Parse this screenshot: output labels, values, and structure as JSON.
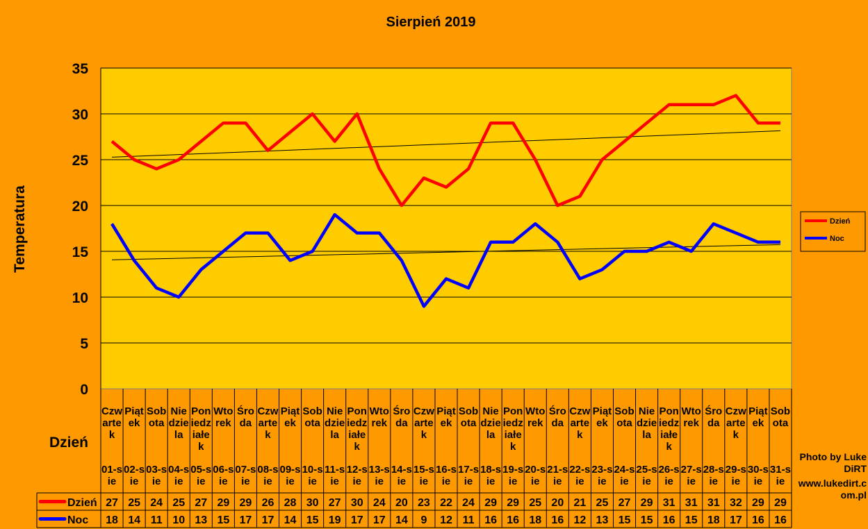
{
  "chart_data": {
    "type": "line",
    "title": "Sierpień 2019",
    "xlabel": "Dzień",
    "ylabel": "Temperatura",
    "ylim": [
      0,
      35
    ],
    "yticks": [
      0,
      5,
      10,
      15,
      20,
      25,
      30,
      35
    ],
    "grid": true,
    "legend_position": "right",
    "weekdays": [
      "Czwartek",
      "Piątek",
      "Sobota",
      "Niedziela",
      "Poniedziałek",
      "Wtorek",
      "Środa",
      "Czwartek",
      "Piątek",
      "Sobota",
      "Niedziela",
      "Poniedziałek",
      "Wtorek",
      "Środa",
      "Czwartek",
      "Piątek",
      "Sobota",
      "Niedziela",
      "Poniedziałek",
      "Wtorek",
      "Środa",
      "Czwartek",
      "Piątek",
      "Sobota",
      "Niedziela",
      "Poniedziałek",
      "Wtorek",
      "Środa",
      "Czwartek",
      "Piątek",
      "Sobota"
    ],
    "categories": [
      "01-sie",
      "02-sie",
      "03-sie",
      "04-sie",
      "05-sie",
      "06-sie",
      "07-sie",
      "08-sie",
      "09-sie",
      "10-sie",
      "11-sie",
      "12-sie",
      "13-sie",
      "14-sie",
      "15-sie",
      "16-sie",
      "17-sie",
      "18-sie",
      "19-sie",
      "20-sie",
      "21-sie",
      "22-sie",
      "23-sie",
      "24-sie",
      "25-sie",
      "26-sie",
      "27-sie",
      "28-sie",
      "29-sie",
      "30-sie",
      "31-sie"
    ],
    "series": [
      {
        "name": "Dzień",
        "color": "#FF0000",
        "values": [
          27,
          25,
          24,
          25,
          27,
          29,
          29,
          26,
          28,
          30,
          27,
          30,
          24,
          20,
          23,
          22,
          24,
          29,
          29,
          25,
          20,
          21,
          25,
          27,
          29,
          31,
          31,
          31,
          32,
          29,
          29
        ]
      },
      {
        "name": "Noc",
        "color": "#0000FF",
        "values": [
          18,
          14,
          11,
          10,
          13,
          15,
          17,
          17,
          14,
          15,
          19,
          17,
          17,
          14,
          9,
          12,
          11,
          16,
          16,
          18,
          16,
          12,
          13,
          15,
          15,
          16,
          15,
          18,
          17,
          16,
          16
        ]
      }
    ],
    "trendlines": "linear"
  },
  "watermark": {
    "line1": "Photo by LukeDiRT",
    "line2": "www.lukedirt.com.pl"
  },
  "colors": {
    "background": "#FF9900",
    "plot_area": "#FFCC00"
  }
}
